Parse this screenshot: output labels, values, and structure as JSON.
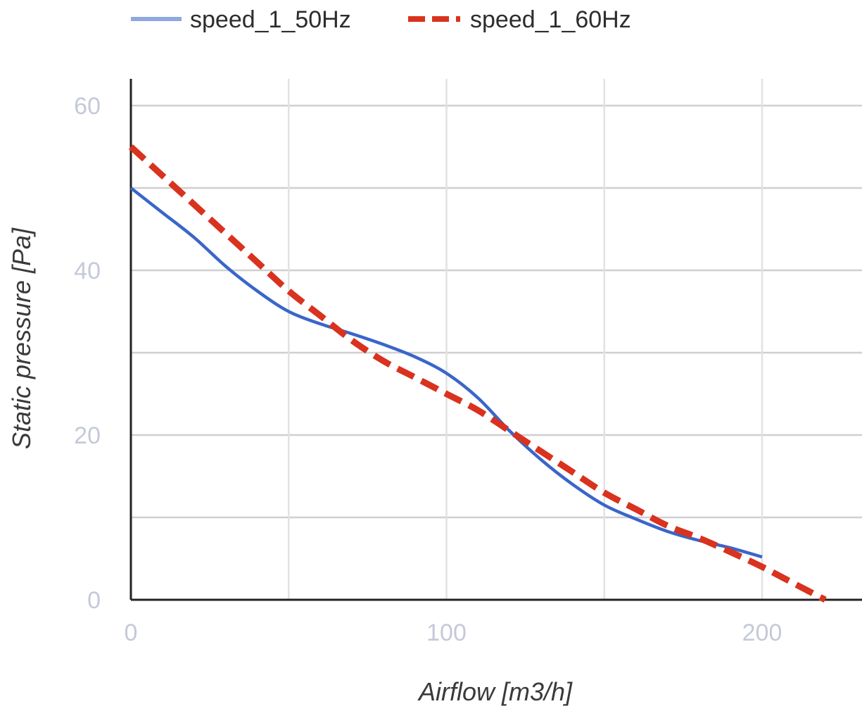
{
  "chart_data": {
    "type": "line",
    "title": "",
    "xlabel": "Airflow [m3/h]",
    "ylabel": "Static pressure [Pa]",
    "xlim": [
      0,
      230
    ],
    "ylim": [
      0,
      60
    ],
    "x_ticks": [
      0,
      100,
      200
    ],
    "y_ticks": [
      0,
      20,
      40,
      60
    ],
    "x_tick_labels": [
      "0",
      "100",
      "200"
    ],
    "y_tick_labels": [
      "0",
      "20",
      "40",
      "60"
    ],
    "x_minor_gridlines": [
      50,
      150
    ],
    "y_minor_gridlines": [
      10,
      30,
      50
    ],
    "grid": true,
    "legend_position": "top",
    "series": [
      {
        "name": "speed_1_50Hz",
        "color": "#3a66c9",
        "legend_color": "#8fa8de",
        "style": "solid",
        "points": [
          [
            0,
            50.0
          ],
          [
            10,
            47.0
          ],
          [
            20,
            44.0
          ],
          [
            30,
            40.5
          ],
          [
            40,
            37.5
          ],
          [
            50,
            35.0
          ],
          [
            60,
            33.5
          ],
          [
            70,
            32.3
          ],
          [
            80,
            31.0
          ],
          [
            90,
            29.5
          ],
          [
            100,
            27.5
          ],
          [
            110,
            24.5
          ],
          [
            120,
            20.5
          ],
          [
            130,
            17.0
          ],
          [
            140,
            14.0
          ],
          [
            150,
            11.5
          ],
          [
            160,
            9.8
          ],
          [
            170,
            8.3
          ],
          [
            180,
            7.2
          ],
          [
            190,
            6.3
          ],
          [
            200,
            5.2
          ]
        ]
      },
      {
        "name": "speed_1_60Hz",
        "color": "#d9321e",
        "legend_color": "#d9321e",
        "style": "dashed",
        "points": [
          [
            0,
            55.0
          ],
          [
            10,
            51.5
          ],
          [
            20,
            48.0
          ],
          [
            30,
            44.5
          ],
          [
            40,
            41.0
          ],
          [
            50,
            37.5
          ],
          [
            60,
            34.5
          ],
          [
            70,
            31.5
          ],
          [
            80,
            29.0
          ],
          [
            90,
            27.0
          ],
          [
            100,
            25.0
          ],
          [
            110,
            23.0
          ],
          [
            120,
            20.5
          ],
          [
            130,
            18.0
          ],
          [
            140,
            15.5
          ],
          [
            150,
            13.0
          ],
          [
            160,
            11.0
          ],
          [
            170,
            9.0
          ],
          [
            180,
            7.5
          ],
          [
            190,
            5.8
          ],
          [
            200,
            4.0
          ],
          [
            210,
            2.0
          ],
          [
            220,
            0.0
          ]
        ]
      }
    ]
  }
}
